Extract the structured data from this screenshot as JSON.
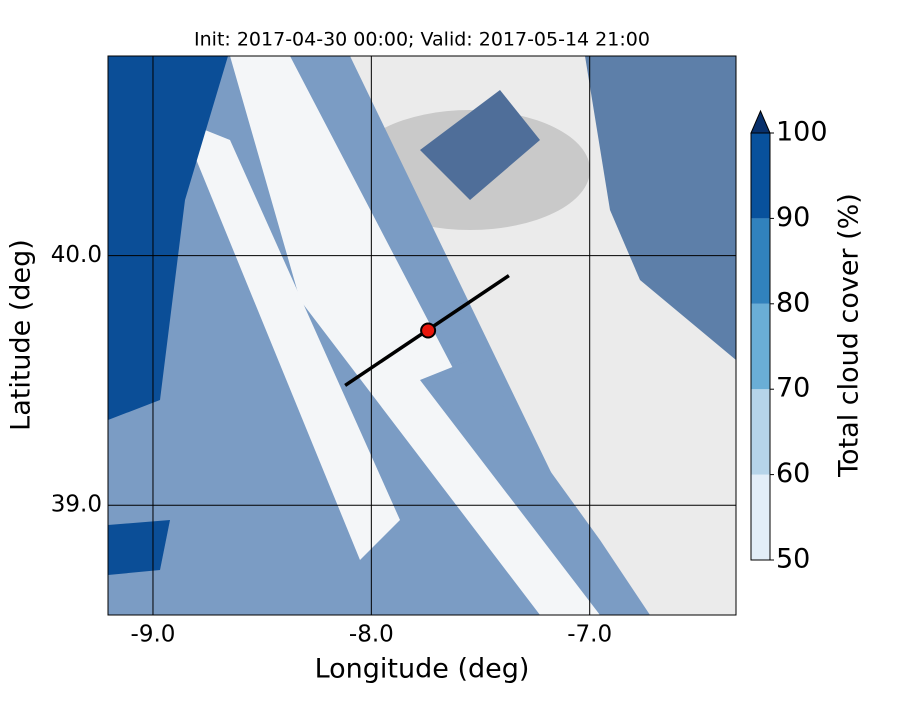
{
  "chart_data": {
    "type": "map",
    "title": "Init: 2017-04-30 00:00; Valid: 2017-05-14 21:00",
    "xlabel": "Longitude (deg)",
    "ylabel": "Latitude (deg)",
    "xlim": [
      -9.206,
      -6.33
    ],
    "ylim": [
      38.56,
      40.8
    ],
    "xticks": [
      {
        "value": -9,
        "label": "-9.0"
      },
      {
        "value": -8,
        "label": "-8.0"
      },
      {
        "value": -7,
        "label": "-7.0"
      }
    ],
    "yticks": [
      {
        "value": 39,
        "label": "39.0"
      },
      {
        "value": 40,
        "label": "40.0"
      }
    ],
    "grid": true,
    "colorbar": {
      "label": "Total cloud cover (%)",
      "levels": [
        50,
        60,
        70,
        80,
        90,
        100
      ],
      "colors": [
        "#e3eef8",
        "#b6d4e9",
        "#6aaed6",
        "#3182bd",
        "#08519c"
      ],
      "extend_color": "#08306b",
      "ticks": [
        50,
        60,
        70,
        80,
        90,
        100
      ]
    },
    "section_line": {
      "lon": [
        -8.12,
        -7.37
      ],
      "lat": [
        39.48,
        39.92
      ],
      "color": "#000000"
    },
    "point": {
      "lon": -7.74,
      "lat": 39.7,
      "color": "#e8160c"
    }
  }
}
